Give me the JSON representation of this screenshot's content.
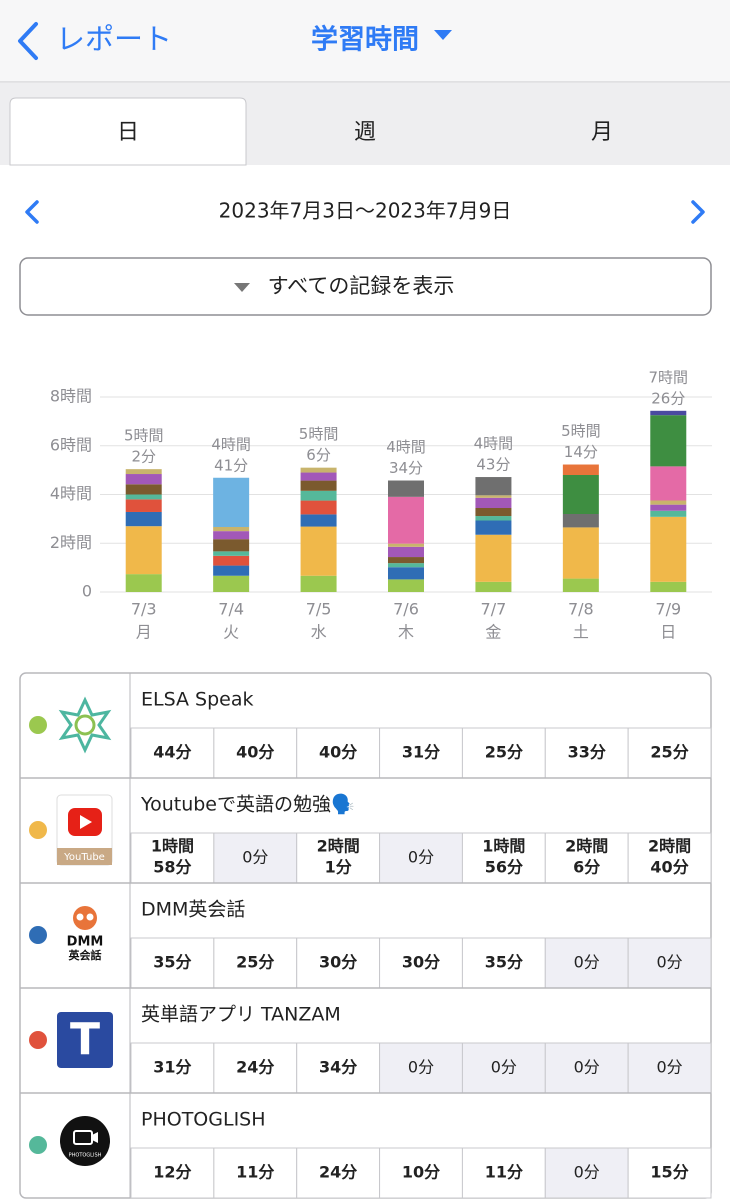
{
  "header": {
    "back": "レポート",
    "title": "学習時間"
  },
  "tabs": [
    "日",
    "週",
    "月"
  ],
  "date_range": "2023年7月3日〜2023年7月9日",
  "filter_button": "すべての記録を表示",
  "chart_data": {
    "type": "bar",
    "stacked": true,
    "categories": [
      "7/3",
      "7/4",
      "7/5",
      "7/6",
      "7/7",
      "7/8",
      "7/9"
    ],
    "weekdays": [
      "月",
      "火",
      "水",
      "木",
      "金",
      "土",
      "日"
    ],
    "total_labels": [
      [
        "5時間",
        "2分"
      ],
      [
        "4時間",
        "41分"
      ],
      [
        "5時間",
        "6分"
      ],
      [
        "4時間",
        "34分"
      ],
      [
        "4時間",
        "43分"
      ],
      [
        "5時間",
        "14分"
      ],
      [
        "7時間",
        "26分"
      ]
    ],
    "ylim": [
      0,
      8
    ],
    "yticks": [
      0,
      {
        "value": 2,
        "label": "2時間"
      },
      {
        "value": 4,
        "label": "4時間"
      },
      {
        "value": 6,
        "label": "6時間"
      },
      {
        "value": 8,
        "label": "8時間"
      }
    ],
    "grid": true,
    "series": [
      {
        "color": "#9bc84f",
        "values": [
          0.733,
          0.667,
          0.667,
          0.517,
          0.417,
          0.55,
          0.417
        ]
      },
      {
        "color": "#f0b84a",
        "values": [
          1.967,
          0,
          2.017,
          0,
          1.933,
          2.1,
          2.667
        ]
      },
      {
        "color": "#2f6db5",
        "values": [
          0.583,
          0.417,
          0.5,
          0.5,
          0.583,
          0,
          0
        ]
      },
      {
        "color": "#e0523c",
        "values": [
          0.517,
          0.4,
          0.567,
          0,
          0,
          0,
          0
        ]
      },
      {
        "color": "#55b89a",
        "values": [
          0.2,
          0.183,
          0.4,
          0.167,
          0.183,
          0,
          0.25
        ]
      },
      {
        "color": "#7b5a2e",
        "values": [
          0.42,
          0.5,
          0.42,
          0.25,
          0.33,
          0,
          0
        ]
      },
      {
        "color": "#a258b8",
        "values": [
          0.42,
          0.33,
          0.33,
          0.42,
          0.42,
          0,
          0.25
        ]
      },
      {
        "color": "#c8b46c",
        "values": [
          0.2,
          0.17,
          0.2,
          0.13,
          0.1,
          0,
          0.17
        ]
      },
      {
        "color": "#6db3e2",
        "values": [
          0,
          2.02,
          0,
          0,
          0,
          0,
          0
        ]
      },
      {
        "color": "#e46aa6",
        "values": [
          0,
          0,
          0,
          1.92,
          0,
          0,
          1.4
        ]
      },
      {
        "color": "#6f6f6f",
        "values": [
          0,
          0,
          0,
          0.67,
          0.75,
          0.55,
          0
        ]
      },
      {
        "color": "#3e8e41",
        "values": [
          0,
          0,
          0,
          0,
          0,
          1.6,
          2.1
        ]
      },
      {
        "color": "#e8743a",
        "values": [
          0,
          0,
          0,
          0,
          0,
          0.43,
          0
        ]
      },
      {
        "color": "#4a4aa0",
        "values": [
          0,
          0,
          0,
          0,
          0,
          0,
          0.18
        ]
      }
    ]
  },
  "records": [
    {
      "name": "ELSA Speak",
      "color": "#9bc84f",
      "cells": [
        [
          "44分"
        ],
        [
          "40分"
        ],
        [
          "40分"
        ],
        [
          "31分"
        ],
        [
          "25分"
        ],
        [
          "33分"
        ],
        [
          "25分"
        ]
      ]
    },
    {
      "name": "Youtubeで英語の勉強🗣️",
      "color": "#f0b84a",
      "icon_text": [
        "YouTube"
      ],
      "cells": [
        [
          "1時間",
          "58分"
        ],
        [
          "0分"
        ],
        [
          "2時間",
          "1分"
        ],
        [
          "0分"
        ],
        [
          "1時間",
          "56分"
        ],
        [
          "2時間",
          "6分"
        ],
        [
          "2時間",
          "40分"
        ]
      ]
    },
    {
      "name": "DMM英会話",
      "color": "#2f6db5",
      "icon_text": [
        "DMM",
        "英会話"
      ],
      "cells": [
        [
          "35分"
        ],
        [
          "25分"
        ],
        [
          "30分"
        ],
        [
          "30分"
        ],
        [
          "35分"
        ],
        [
          "0分"
        ],
        [
          "0分"
        ]
      ]
    },
    {
      "name": "英単語アプリ TANZAM",
      "color": "#e0523c",
      "icon_text": [
        "T"
      ],
      "cells": [
        [
          "31分"
        ],
        [
          "24分"
        ],
        [
          "34分"
        ],
        [
          "0分"
        ],
        [
          "0分"
        ],
        [
          "0分"
        ],
        [
          "0分"
        ]
      ]
    },
    {
      "name": "PHOTOGLISH",
      "color": "#55b89a",
      "icon_text": [
        "PHOTOGLISH"
      ],
      "cells": [
        [
          "12分"
        ],
        [
          "11分"
        ],
        [
          "24分"
        ],
        [
          "10分"
        ],
        [
          "11分"
        ],
        [
          "0分"
        ],
        [
          "15分"
        ]
      ]
    }
  ]
}
